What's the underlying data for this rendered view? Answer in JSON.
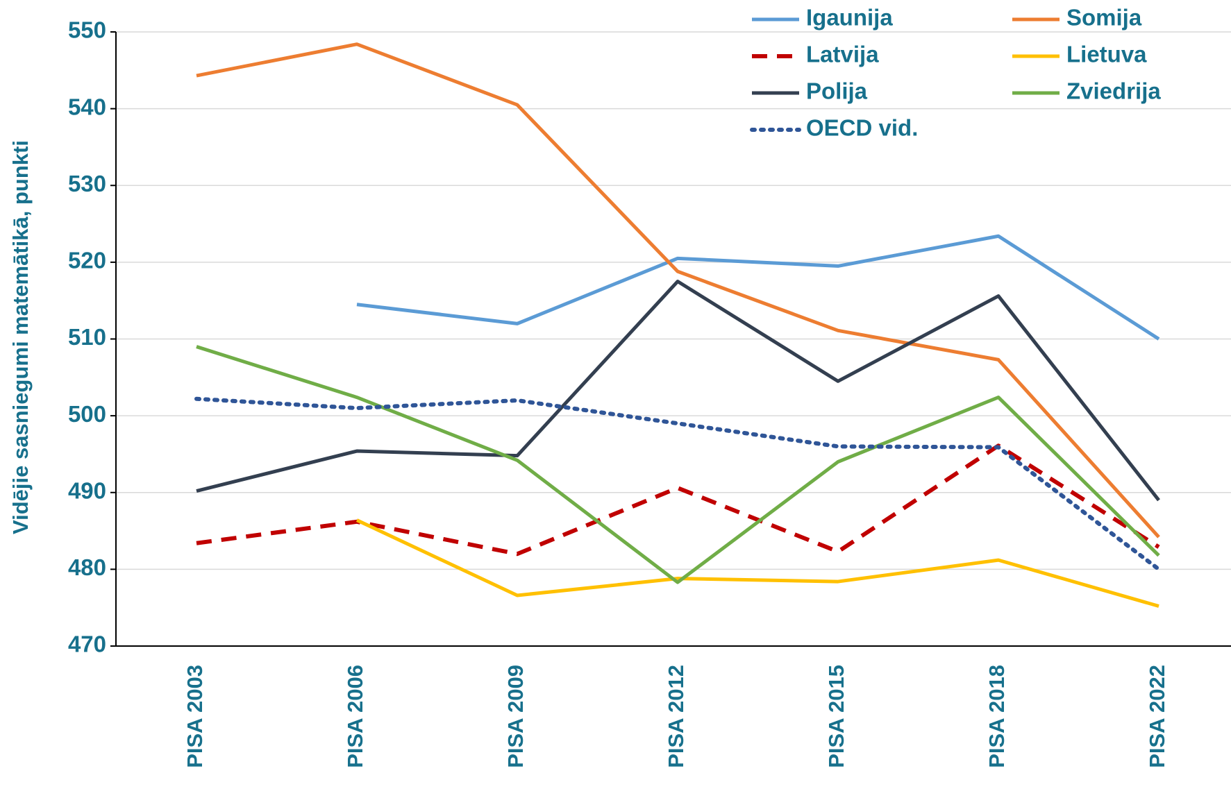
{
  "chart_data": {
    "type": "line",
    "y_label": "Vidējie sasniegumi matemātikā, punkti",
    "categories": [
      "PISA 2003",
      "PISA 2006",
      "PISA 2009",
      "PISA 2012",
      "PISA 2015",
      "PISA 2018",
      "PISA 2022"
    ],
    "series": [
      {
        "name": "Igaunija",
        "color": "#5b9bd5",
        "style": "solid",
        "values": [
          null,
          514.5,
          512,
          520.5,
          519.5,
          523.4,
          510
        ]
      },
      {
        "name": "Somija",
        "color": "#ed7d31",
        "style": "solid",
        "values": [
          544.3,
          548.4,
          540.5,
          518.8,
          511.1,
          507.3,
          484.2
        ]
      },
      {
        "name": "Latvija",
        "color": "#c00000",
        "style": "dashed",
        "values": [
          483.4,
          486.2,
          482,
          490.6,
          482.3,
          496.1,
          482.9
        ]
      },
      {
        "name": "Lietuva",
        "color": "#ffc000",
        "style": "solid",
        "values": [
          null,
          486.4,
          476.6,
          478.8,
          478.4,
          481.2,
          475.2
        ]
      },
      {
        "name": "Polija",
        "color": "#333f50",
        "style": "solid",
        "values": [
          490.2,
          495.4,
          494.8,
          517.5,
          504.5,
          515.6,
          489
        ]
      },
      {
        "name": "Zviedrija",
        "color": "#70ad47",
        "style": "solid",
        "values": [
          509,
          502.4,
          494.2,
          478.3,
          494,
          502.4,
          481.8
        ]
      },
      {
        "name": "OECD vid.",
        "color": "#2f5597",
        "style": "dotted",
        "values": [
          502.2,
          501,
          502,
          499,
          496,
          495.9,
          480
        ]
      }
    ],
    "ylim": [
      470,
      550
    ],
    "yticks": [
      470,
      480,
      490,
      500,
      510,
      520,
      530,
      540,
      550
    ],
    "grid": true,
    "legend": "top-right"
  }
}
